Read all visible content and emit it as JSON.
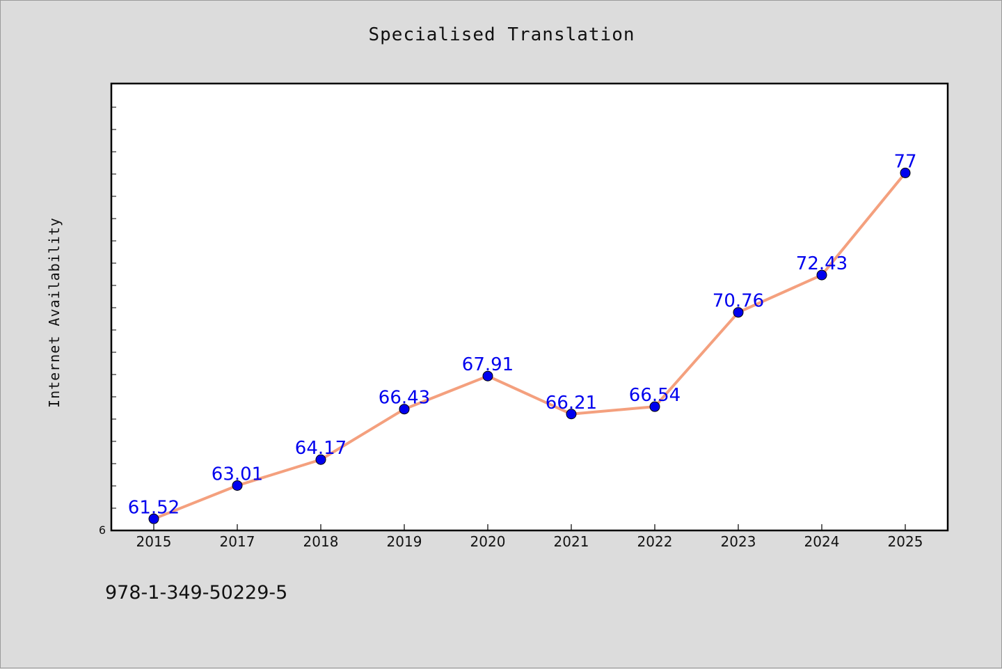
{
  "chart_data": {
    "type": "line",
    "title": "Specialised Translation",
    "xlabel": "",
    "ylabel": "Internet Availability",
    "categories": [
      "2015",
      "2017",
      "2018",
      "2019",
      "2020",
      "2021",
      "2022",
      "2023",
      "2024",
      "2025"
    ],
    "series": [
      {
        "values": [
          61.52,
          63.01,
          64.17,
          66.43,
          67.91,
          66.21,
          66.54,
          70.76,
          72.43,
          77
        ],
        "labels": [
          "61.52",
          "63.01",
          "64.17",
          "66.43",
          "67.91",
          "66.21",
          "66.54",
          "70.76",
          "72.43",
          "77"
        ],
        "color": "#f4a07e",
        "marker_color": "#0000ee"
      }
    ],
    "y_tick_labels": [
      "6"
    ],
    "ylim": [
      61.0,
      81.0
    ],
    "grid": false,
    "legend": "none",
    "label_color": "#0000ee"
  },
  "footer": {
    "code": "978-1-349-50229-5"
  }
}
